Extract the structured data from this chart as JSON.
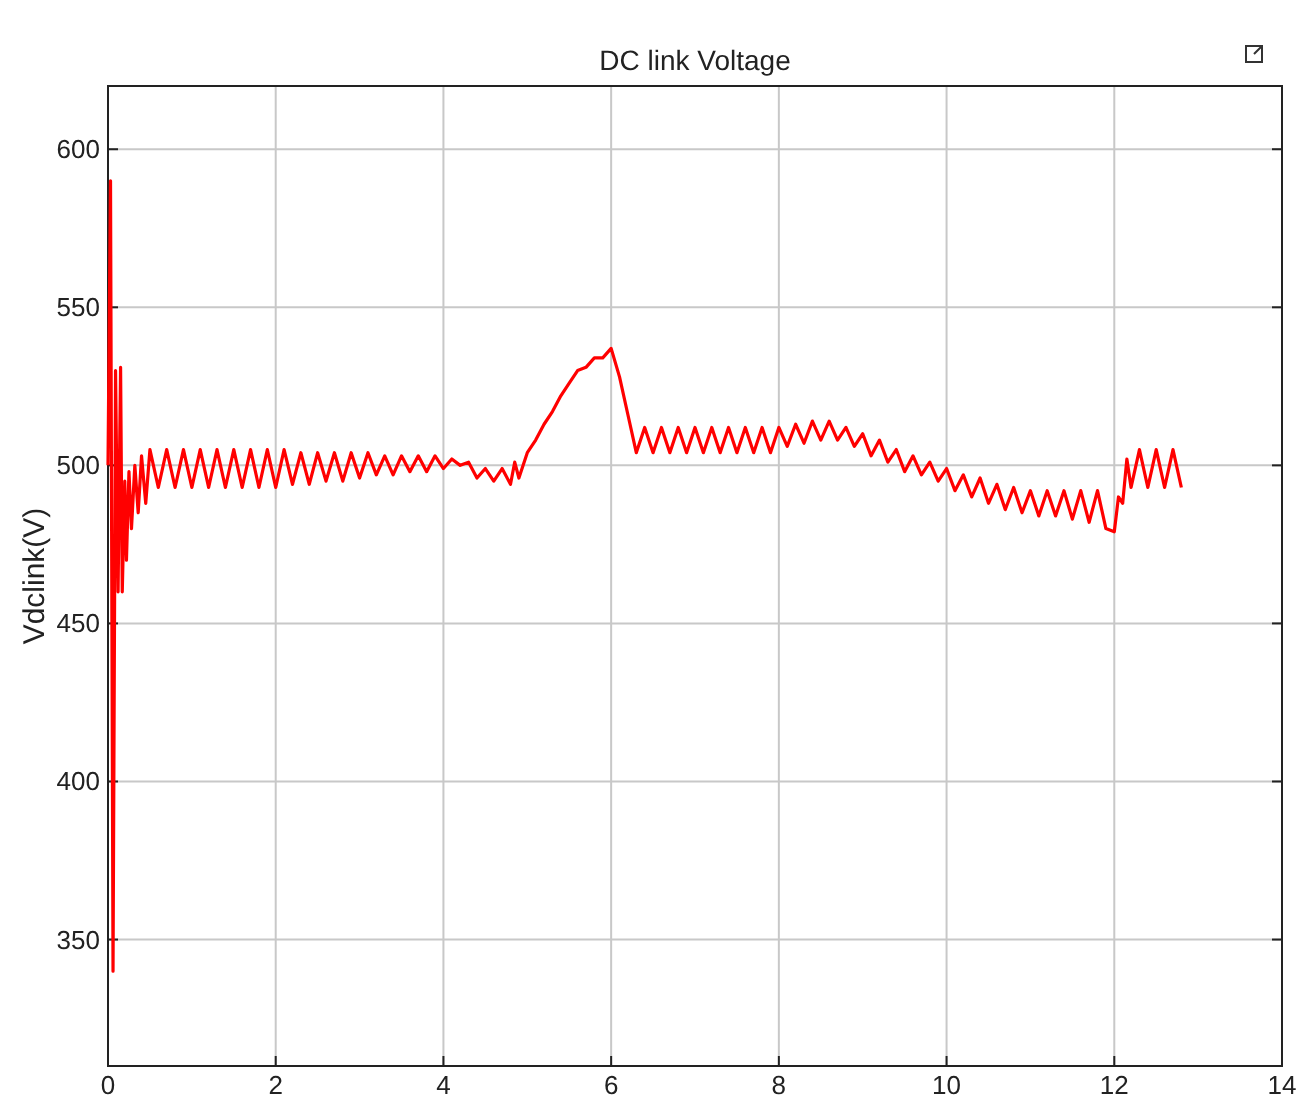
{
  "chart_data": {
    "type": "line",
    "title": "DC link Voltage",
    "ylabel": "Vdclink(V)",
    "x": [
      0,
      0.03,
      0.06,
      0.09,
      0.12,
      0.15,
      0.17,
      0.2,
      0.22,
      0.25,
      0.28,
      0.32,
      0.36,
      0.4,
      0.45,
      0.5,
      0.6,
      0.7,
      0.8,
      0.9,
      1.0,
      1.1,
      1.2,
      1.3,
      1.4,
      1.5,
      1.6,
      1.7,
      1.8,
      1.9,
      2.0,
      2.1,
      2.2,
      2.3,
      2.4,
      2.5,
      2.6,
      2.7,
      2.8,
      2.9,
      3.0,
      3.1,
      3.2,
      3.3,
      3.4,
      3.5,
      3.6,
      3.7,
      3.8,
      3.9,
      4.0,
      4.1,
      4.2,
      4.3,
      4.4,
      4.5,
      4.6,
      4.7,
      4.8,
      4.85,
      4.9,
      5.0,
      5.1,
      5.2,
      5.3,
      5.4,
      5.5,
      5.6,
      5.7,
      5.8,
      5.9,
      6.0,
      6.1,
      6.2,
      6.3,
      6.4,
      6.5,
      6.6,
      6.7,
      6.8,
      6.9,
      7.0,
      7.1,
      7.2,
      7.3,
      7.4,
      7.5,
      7.6,
      7.7,
      7.8,
      7.9,
      8.0,
      8.1,
      8.2,
      8.3,
      8.4,
      8.5,
      8.6,
      8.7,
      8.8,
      8.9,
      9.0,
      9.1,
      9.2,
      9.3,
      9.4,
      9.5,
      9.6,
      9.7,
      9.8,
      9.9,
      10.0,
      10.1,
      10.2,
      10.3,
      10.4,
      10.5,
      10.6,
      10.7,
      10.8,
      10.9,
      11.0,
      11.1,
      11.2,
      11.3,
      11.4,
      11.5,
      11.6,
      11.7,
      11.8,
      11.9,
      12.0,
      12.05,
      12.1,
      12.15,
      12.2,
      12.3,
      12.4,
      12.5,
      12.6,
      12.7,
      12.8
    ],
    "series": [
      {
        "color": "#ff0000",
        "values": [
          500,
          590,
          340,
          530,
          460,
          531,
          460,
          495,
          470,
          498,
          480,
          500,
          485,
          503,
          488,
          505,
          493,
          505,
          493,
          505,
          493,
          505,
          493,
          505,
          493,
          505,
          493,
          505,
          493,
          505,
          493,
          505,
          494,
          504,
          494,
          504,
          495,
          504,
          495,
          504,
          496,
          504,
          497,
          503,
          497,
          503,
          498,
          503,
          498,
          503,
          499,
          502,
          500,
          501,
          496,
          499,
          495,
          499,
          494,
          501,
          496,
          504,
          508,
          513,
          517,
          522,
          526,
          530,
          531,
          534,
          534,
          537,
          528,
          516,
          504,
          512,
          504,
          512,
          504,
          512,
          504,
          512,
          504,
          512,
          504,
          512,
          504,
          512,
          504,
          512,
          504,
          512,
          506,
          513,
          507,
          514,
          508,
          514,
          508,
          512,
          506,
          510,
          503,
          508,
          501,
          505,
          498,
          503,
          497,
          501,
          495,
          499,
          492,
          497,
          490,
          496,
          488,
          494,
          486,
          493,
          485,
          492,
          484,
          492,
          484,
          492,
          483,
          492,
          482,
          492,
          480,
          479,
          490,
          488,
          502,
          493,
          505,
          493,
          505,
          493,
          505,
          493
        ]
      }
    ],
    "xlim": [
      0,
      14
    ],
    "xticks": [
      0,
      2,
      4,
      6,
      8,
      10,
      12,
      14
    ],
    "ylim": [
      310,
      620
    ],
    "yticks": [
      350,
      400,
      450,
      500,
      550,
      600
    ],
    "grid": true,
    "line_style": "solid",
    "marker": "none"
  }
}
